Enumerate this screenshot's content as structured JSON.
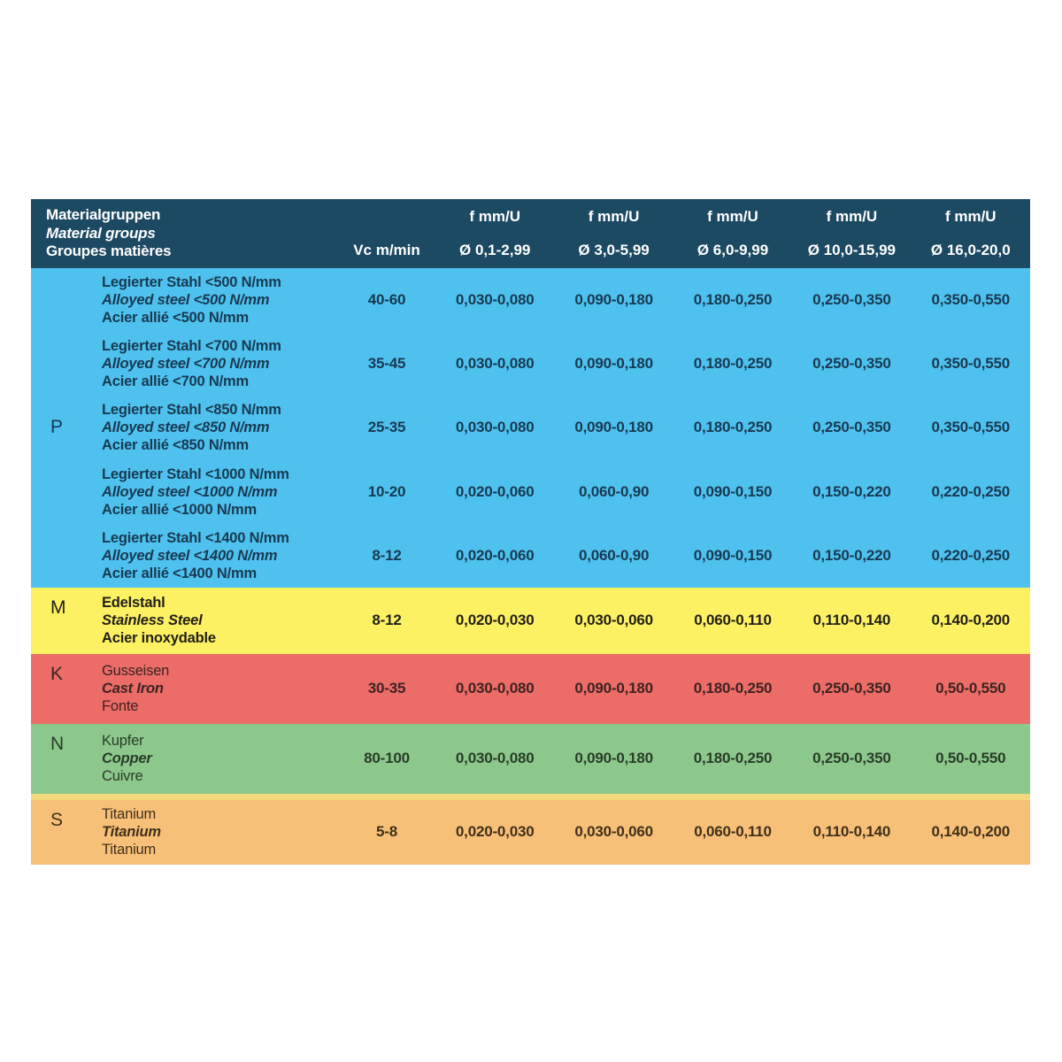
{
  "table": {
    "header": {
      "bg": "#1d4a63",
      "text_color": "#ffffff",
      "material_de": "Materialgruppen",
      "material_en": "Material groups",
      "material_fr": "Groupes matières",
      "vc_label": "Vc m/min",
      "f_label": "f mm/U",
      "diameters": [
        "Ø 0,1-2,99",
        "Ø 3,0-5,99",
        "Ø 6,0-9,99",
        "Ø 10,0-15,99",
        "Ø 16,0-20,0"
      ]
    },
    "sections": [
      {
        "group": "P",
        "bg": "#4fc1ef",
        "text_color": "#173a52",
        "names_bold": true,
        "rows": [
          {
            "de": "Legierter Stahl <500 N/mm",
            "en": "Alloyed steel <500 N/mm",
            "fr": "Acier allié <500 N/mm",
            "vc": "40-60",
            "f": [
              "0,030-0,080",
              "0,090-0,180",
              "0,180-0,250",
              "0,250-0,350",
              "0,350-0,550"
            ]
          },
          {
            "de": "Legierter Stahl <700 N/mm",
            "en": "Alloyed steel <700 N/mm",
            "fr": "Acier allié <700 N/mm",
            "vc": "35-45",
            "f": [
              "0,030-0,080",
              "0,090-0,180",
              "0,180-0,250",
              "0,250-0,350",
              "0,350-0,550"
            ]
          },
          {
            "de": "Legierter Stahl <850 N/mm",
            "en": "Alloyed steel <850 N/mm",
            "fr": "Acier allié <850 N/mm",
            "vc": "25-35",
            "f": [
              "0,030-0,080",
              "0,090-0,180",
              "0,180-0,250",
              "0,250-0,350",
              "0,350-0,550"
            ]
          },
          {
            "de": "Legierter Stahl <1000 N/mm",
            "en": "Alloyed steel <1000 N/mm",
            "fr": "Acier allié <1000 N/mm",
            "vc": "10-20",
            "f": [
              "0,020-0,060",
              "0,060-0,90",
              "0,090-0,150",
              "0,150-0,220",
              "0,220-0,250"
            ]
          },
          {
            "de": "Legierter Stahl <1400 N/mm",
            "en": "Alloyed steel <1400 N/mm",
            "fr": "Acier allié <1400 N/mm",
            "vc": "8-12",
            "f": [
              "0,020-0,060",
              "0,060-0,90",
              "0,090-0,150",
              "0,150-0,220",
              "0,220-0,250"
            ]
          }
        ]
      },
      {
        "group": "M",
        "bg": "#fcf162",
        "text_color": "#22201a",
        "names_bold": true,
        "rows": [
          {
            "de": "Edelstahl",
            "en": "Stainless Steel",
            "fr": "Acier inoxydable",
            "vc": "8-12",
            "f": [
              "0,020-0,030",
              "0,030-0,060",
              "0,060-0,110",
              "0,110-0,140",
              "0,140-0,200"
            ]
          }
        ]
      },
      {
        "group": "K",
        "bg": "#ec6c67",
        "text_color": "#3d2321",
        "names_bold": false,
        "rows": [
          {
            "de": "Gusseisen",
            "en": "Cast Iron",
            "fr": "Fonte",
            "vc": "30-35",
            "f": [
              "0,030-0,080",
              "0,090-0,180",
              "0,180-0,250",
              "0,250-0,350",
              "0,50-0,550"
            ]
          }
        ]
      },
      {
        "group": "N",
        "bg": "#8cc88c",
        "text_color": "#283c28",
        "names_bold": false,
        "rows": [
          {
            "de": "Kupfer",
            "en": "Copper",
            "fr": "Cuivre",
            "vc": "80-100",
            "f": [
              "0,030-0,080",
              "0,090-0,180",
              "0,180-0,250",
              "0,250-0,350",
              "0,50-0,550"
            ]
          }
        ]
      },
      {
        "group": "S",
        "bg": "#f7c078",
        "text_color": "#403019",
        "names_bold": false,
        "top_strip_color": "#f2d87c",
        "rows": [
          {
            "de": "Titanium",
            "en": "Titanium",
            "fr": "Titanium",
            "vc": "5-8",
            "f": [
              "0,020-0,030",
              "0,030-0,060",
              "0,060-0,110",
              "0,110-0,140",
              "0,140-0,200"
            ]
          }
        ]
      }
    ]
  }
}
